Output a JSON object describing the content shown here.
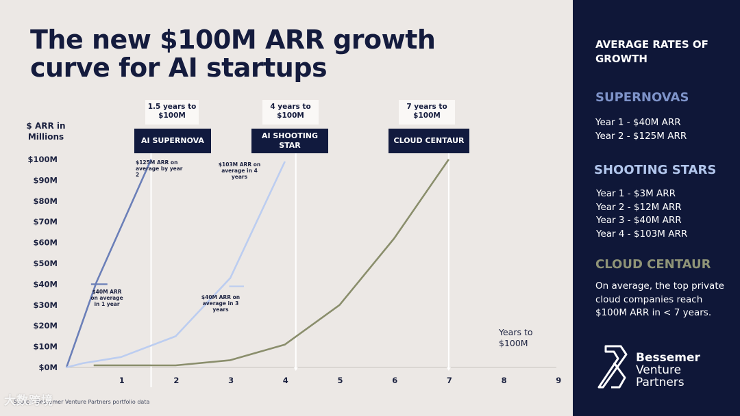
{
  "title": "The new $100M ARR growth curve for AI startups",
  "y_axis_unit": "$ ARR in Millions",
  "x_axis_title": "Years to $100M",
  "source": "Source: Bessemer Venture Partners portfolio data",
  "watermark": "大数跨境",
  "callouts": [
    {
      "time_text": "1.5 years to $100M",
      "label": "AI SUPERNOVA"
    },
    {
      "time_text": "4 years to $100M",
      "label": "AI SHOOTING STAR"
    },
    {
      "time_text": "7 years to $100M",
      "label": "CLOUD CENTAUR"
    }
  ],
  "annotations": {
    "supernova_top": "$125M ARR on average by year 2",
    "shooting_top": "$103M ARR on average in 4 years",
    "supernova_40": "$40M ARR on average in 1 year",
    "shooting_40": "$40M ARR on average in 3 years"
  },
  "chart_data": {
    "type": "line",
    "title": "The new $100M ARR growth curve for AI startups",
    "ylabel": "$ ARR in Millions",
    "xlabel": "Years to $100M",
    "ylim": [
      0,
      100
    ],
    "xlim": [
      0,
      9
    ],
    "y_ticks": [
      0,
      10,
      20,
      30,
      40,
      50,
      60,
      70,
      80,
      90,
      100
    ],
    "y_tick_labels": [
      "$0M",
      "$10M",
      "$20M",
      "$30M",
      "$40M",
      "$50M",
      "$60M",
      "$70M",
      "$80M",
      "$90M",
      "$100M"
    ],
    "x_ticks": [
      1,
      2,
      3,
      4,
      5,
      6,
      7,
      8,
      9
    ],
    "x_tick_labels": [
      "1",
      "2",
      "3",
      "4",
      "5",
      "6",
      "7",
      "8",
      "9"
    ],
    "grid": false,
    "series": [
      {
        "name": "AI Supernova",
        "color": "#6b7fb8",
        "x": [
          0,
          0.55,
          1.55
        ],
        "y": [
          0,
          41,
          100
        ]
      },
      {
        "name": "AI Shooting Star",
        "color": "#bccdf0",
        "x": [
          0,
          0.3,
          1,
          2,
          3,
          4
        ],
        "y": [
          0,
          2,
          5,
          15,
          43,
          99
        ]
      },
      {
        "name": "Cloud Centaur",
        "color": "#8a8e6c",
        "x": [
          0.5,
          1,
          2,
          3,
          4,
          5,
          6,
          7
        ],
        "y": [
          1,
          1,
          1,
          3.5,
          11,
          30,
          62,
          100
        ]
      }
    ],
    "markers": [
      {
        "series": "AI Supernova",
        "x": 0.45,
        "x_end": 0.75,
        "y": 40
      },
      {
        "series": "AI Shooting Star",
        "x": 2.98,
        "x_end": 3.25,
        "y": 39
      },
      {
        "series": "Cloud Centaur",
        "x": 0.5,
        "x_end": 1.55,
        "y": 1
      }
    ],
    "year_markers": [
      1.55,
      4.2,
      7
    ]
  },
  "sidebar": {
    "heading": "AVERAGE RATES OF GROWTH",
    "supernovas": {
      "title": "SUPERNOVAS",
      "items": [
        "Year 1 - $40M ARR",
        "Year 2 - $125M ARR"
      ]
    },
    "shooting_stars": {
      "title": "SHOOTING STARS",
      "items": [
        "Year 1 - $3M ARR",
        "Year 2 - $12M ARR",
        "Year 3 - $40M ARR",
        "Year 4 - $103M ARR"
      ]
    },
    "cloud_centaur": {
      "title": "CLOUD CENTAUR",
      "text": "On average, the top private cloud companies reach $100M ARR in < 7 years."
    },
    "logo": {
      "line1": "Bessemer",
      "line2": "Venture",
      "line3": "Partners"
    }
  },
  "colors": {
    "background": "#ece8e5",
    "navy": "#0f1738",
    "supernova": "#6b7fb8",
    "shooting_star": "#bccdf0",
    "centaur": "#8a8e6c"
  }
}
